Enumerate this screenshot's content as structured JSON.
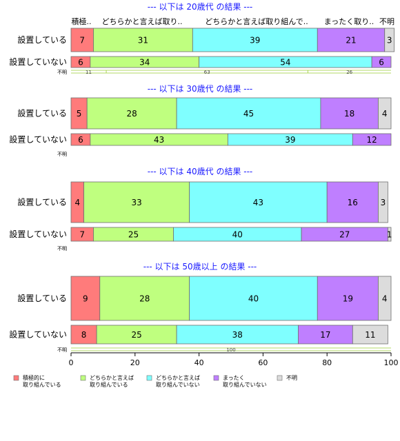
{
  "chart_data": {
    "type": "bar",
    "orientation": "horizontal",
    "stacked": true,
    "xlim": [
      0,
      100
    ],
    "x_ticks": [
      "0",
      "20",
      "40",
      "60",
      "80",
      "100"
    ],
    "grid": false,
    "legend_position": "bottom",
    "categories": [
      "積極的に取り組んでいる",
      "どちらかと言えば取り組んでいる",
      "どちらかと言えば取り組んでいない",
      "まったく取り組んでいない",
      "不明"
    ],
    "category_colors": [
      "#ff7b7b",
      "#bfff7f",
      "#7fffff",
      "#bf7fff",
      "#dcdcdc"
    ],
    "header_labels": [
      "積極..",
      "どちらかと言えば取り..",
      "どちらかと言えば取り組んで..",
      "まったく取り..",
      "不明"
    ],
    "legend_labels": [
      [
        "積極的に",
        "取り組んでいる"
      ],
      [
        "どちらかと言えば",
        "取り組んでいる"
      ],
      [
        "どちらかと言えば",
        "取り組んでいない"
      ],
      [
        "まったく",
        "取り組んでいない"
      ],
      [
        "不明"
      ]
    ],
    "panels": [
      {
        "title": "--- 以下は 20歳代 の結果 ---",
        "rows": [
          {
            "label": "設置している",
            "values": [
              7,
              31,
              39,
              21,
              3
            ]
          },
          {
            "label": "設置していない",
            "values": [
              6,
              34,
              54,
              6,
              0
            ]
          },
          {
            "label": "不明",
            "values": []
          }
        ],
        "row_totals": [
          "11",
          "63",
          "26"
        ]
      },
      {
        "title": "--- 以下は 30歳代 の結果 ---",
        "rows": [
          {
            "label": "設置している",
            "values": [
              5,
              28,
              45,
              18,
              4
            ]
          },
          {
            "label": "設置していない",
            "values": [
              6,
              43,
              39,
              12,
              0
            ]
          },
          {
            "label": "不明",
            "values": []
          }
        ],
        "row_totals": []
      },
      {
        "title": "--- 以下は 40歳代 の結果 ---",
        "rows": [
          {
            "label": "設置している",
            "values": [
              4,
              33,
              43,
              16,
              3
            ]
          },
          {
            "label": "設置していない",
            "values": [
              7,
              25,
              40,
              27,
              1
            ]
          },
          {
            "label": "不明",
            "values": []
          }
        ],
        "row_totals": []
      },
      {
        "title": "--- 以下は 50歳以上 の結果 ---",
        "rows": [
          {
            "label": "設置している",
            "values": [
              9,
              28,
              40,
              19,
              4
            ]
          },
          {
            "label": "設置していない",
            "values": [
              8,
              25,
              38,
              17,
              11
            ]
          },
          {
            "label": "不明",
            "values": []
          }
        ],
        "row_totals": [
          "100"
        ]
      }
    ]
  }
}
